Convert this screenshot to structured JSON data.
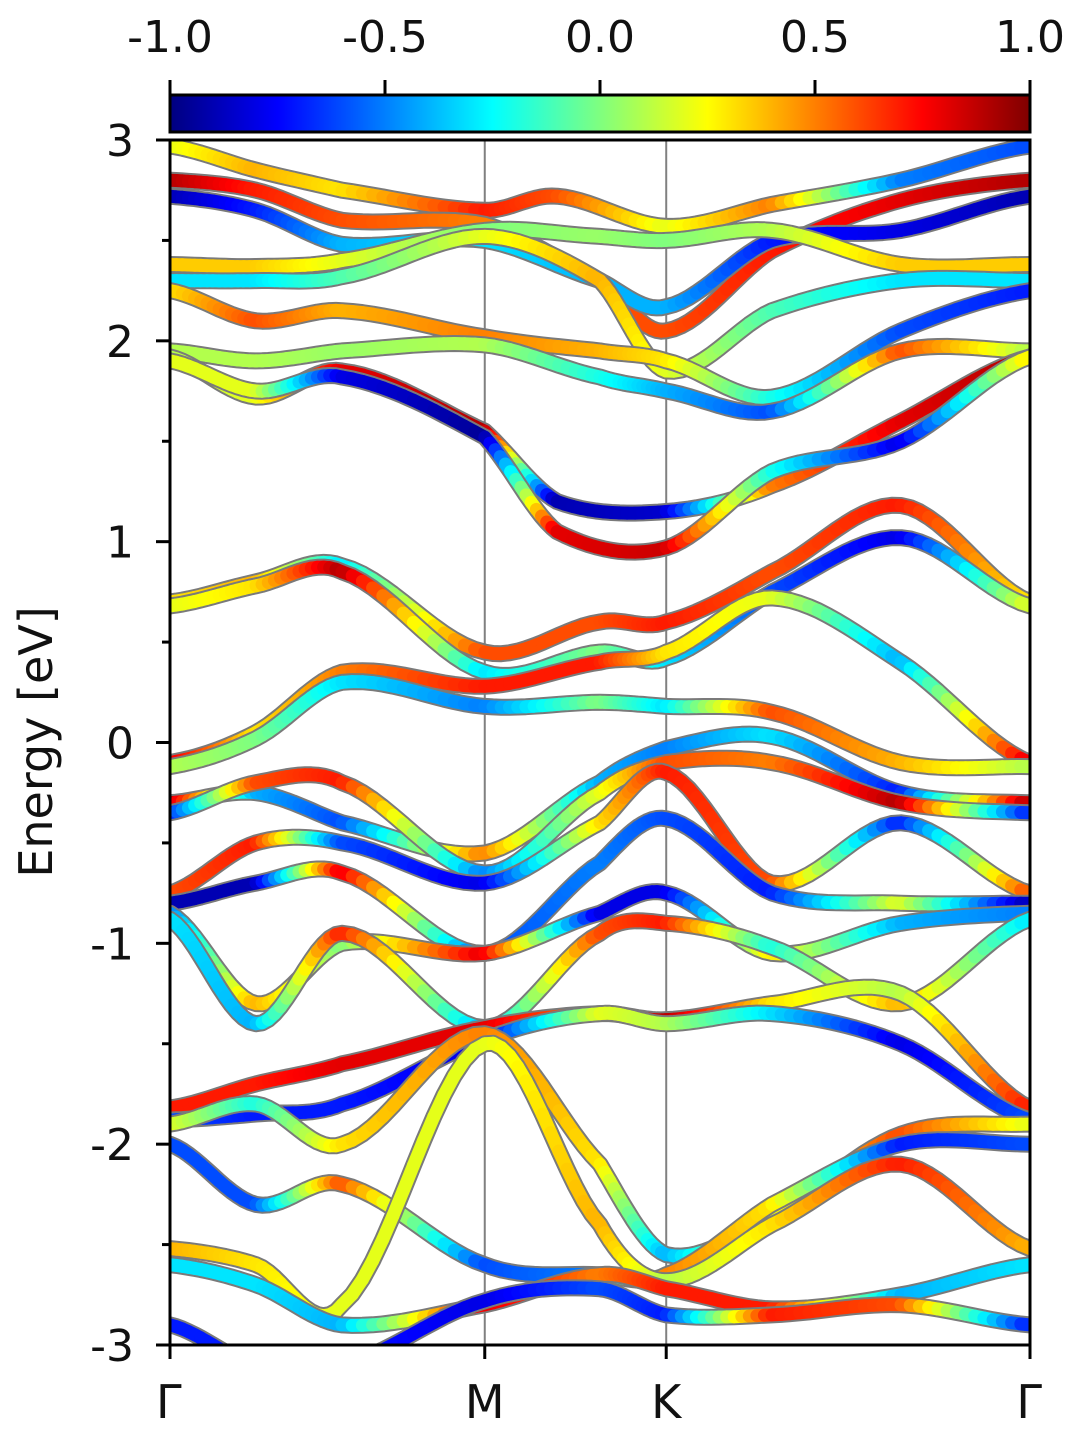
{
  "chart_data": {
    "type": "line",
    "title": "",
    "ylabel": "Energy [eV]",
    "ylim": [
      -3,
      3
    ],
    "ytick_values": [
      -3,
      -2,
      -1,
      0,
      1,
      2,
      3
    ],
    "ytick_labels": [
      "-3",
      "-2",
      "-1",
      "0",
      "1",
      "2",
      "3"
    ],
    "xtick_labels": [
      "Γ",
      "M",
      "K",
      "Γ"
    ],
    "xtick_positions": [
      0,
      0.366,
      0.577,
      1
    ],
    "high_symmetry_lines": [
      "M",
      "K"
    ],
    "colorbar": {
      "min": -1.0,
      "max": 1.0,
      "tick_values": [
        -1.0,
        -0.5,
        0.0,
        0.5,
        1.0
      ],
      "tick_labels": [
        "-1.0",
        "-0.5",
        "0.0",
        "0.5",
        "1.0"
      ],
      "colormap": "jet",
      "stops": [
        "#00007f",
        "#0000ff",
        "#007fff",
        "#00ffff",
        "#7fff7f",
        "#ffff00",
        "#ff7f00",
        "#ff0000",
        "#7f0000"
      ]
    },
    "series": [
      {
        "x": [
          0,
          0.1,
          0.2,
          0.366,
          0.45,
          0.577,
          0.7,
          0.85,
          1
        ],
        "y": [
          2.97,
          2.85,
          2.75,
          2.65,
          2.72,
          2.57,
          2.68,
          2.8,
          2.97
        ],
        "c": [
          0.2,
          0.4,
          0.3,
          0.7,
          0.6,
          0.2,
          0.5,
          -0.5,
          -0.6
        ]
      },
      {
        "x": [
          0,
          0.1,
          0.2,
          0.366,
          0.5,
          0.577,
          0.7,
          0.85,
          1
        ],
        "y": [
          2.8,
          2.75,
          2.6,
          2.58,
          2.3,
          2.05,
          2.45,
          2.7,
          2.8
        ],
        "c": [
          0.9,
          0.7,
          0.6,
          0.5,
          0.6,
          0.6,
          0.7,
          0.8,
          0.9
        ]
      },
      {
        "x": [
          0,
          0.1,
          0.2,
          0.366,
          0.5,
          0.577,
          0.7,
          0.85,
          1
        ],
        "y": [
          2.72,
          2.65,
          2.48,
          2.5,
          2.3,
          2.17,
          2.5,
          2.55,
          2.72
        ],
        "c": [
          -0.9,
          -0.7,
          -0.4,
          -0.3,
          -0.4,
          -0.4,
          -0.7,
          -0.8,
          -0.9
        ]
      },
      {
        "x": [
          0,
          0.1,
          0.2,
          0.366,
          0.5,
          0.577,
          0.7,
          0.85,
          1
        ],
        "y": [
          2.38,
          2.37,
          2.4,
          2.55,
          2.52,
          2.5,
          2.55,
          2.38,
          2.38
        ],
        "c": [
          0.35,
          0.35,
          0.2,
          0.0,
          0.05,
          0.0,
          0.1,
          0.35,
          0.35
        ]
      },
      {
        "x": [
          0,
          0.1,
          0.2,
          0.366,
          0.5,
          0.577,
          0.7,
          0.85,
          1
        ],
        "y": [
          2.3,
          2.3,
          2.32,
          2.52,
          2.3,
          1.85,
          2.15,
          2.3,
          2.3
        ],
        "c": [
          -0.3,
          -0.3,
          -0.1,
          0.2,
          0.4,
          0.2,
          -0.1,
          -0.3,
          -0.3
        ]
      },
      {
        "x": [
          0,
          0.1,
          0.2,
          0.366,
          0.5,
          0.577,
          0.7,
          0.85,
          1
        ],
        "y": [
          2.25,
          2.1,
          2.15,
          2.02,
          1.95,
          1.9,
          1.72,
          2.05,
          2.25
        ],
        "c": [
          0.3,
          0.6,
          0.4,
          0.5,
          0.4,
          0.3,
          -0.2,
          -0.6,
          -0.7
        ]
      },
      {
        "x": [
          0,
          0.1,
          0.2,
          0.366,
          0.5,
          0.577,
          0.7,
          0.85,
          1
        ],
        "y": [
          1.95,
          1.9,
          1.95,
          1.98,
          1.82,
          1.75,
          1.65,
          1.95,
          1.95
        ],
        "c": [
          0.1,
          0.1,
          0.05,
          0.1,
          -0.2,
          -0.4,
          -0.6,
          0.6,
          0.1
        ]
      },
      {
        "x": [
          0,
          0.1,
          0.2,
          0.366,
          0.45,
          0.577,
          0.7,
          0.85,
          1
        ],
        "y": [
          1.92,
          1.72,
          1.85,
          1.55,
          1.2,
          1.15,
          1.28,
          1.6,
          1.92
        ],
        "c": [
          0.1,
          0.2,
          0.8,
          0.9,
          -0.9,
          -0.85,
          0.5,
          0.8,
          0.9
        ]
      },
      {
        "x": [
          0,
          0.1,
          0.2,
          0.366,
          0.45,
          0.577,
          0.7,
          0.85,
          1
        ],
        "y": [
          1.9,
          1.75,
          1.82,
          1.52,
          1.05,
          0.97,
          1.35,
          1.5,
          1.92
        ],
        "c": [
          0.2,
          0.2,
          -0.8,
          -0.95,
          0.8,
          0.85,
          -0.2,
          -0.8,
          0.3
        ]
      },
      {
        "x": [
          0,
          0.1,
          0.2,
          0.366,
          0.5,
          0.577,
          0.7,
          0.85,
          1
        ],
        "y": [
          0.7,
          0.8,
          0.88,
          0.45,
          0.6,
          0.6,
          0.85,
          1.18,
          0.7
        ],
        "c": [
          0.3,
          0.4,
          -0.3,
          0.6,
          0.6,
          0.7,
          0.6,
          0.7,
          0.3
        ]
      },
      {
        "x": [
          0,
          0.1,
          0.2,
          0.366,
          0.5,
          0.577,
          0.7,
          0.85,
          1
        ],
        "y": [
          0.68,
          0.78,
          0.85,
          0.35,
          0.45,
          0.42,
          0.75,
          1.02,
          0.68
        ],
        "c": [
          0.2,
          0.3,
          0.9,
          -0.3,
          0.0,
          -0.3,
          -0.6,
          -0.8,
          0.2
        ]
      },
      {
        "x": [
          0,
          0.1,
          0.2,
          0.366,
          0.5,
          0.577,
          0.7,
          0.85,
          1
        ],
        "y": [
          -0.1,
          0.05,
          0.35,
          0.28,
          0.4,
          0.45,
          0.72,
          0.4,
          -0.1
        ],
        "c": [
          0.8,
          0.3,
          0.5,
          0.7,
          0.7,
          0.3,
          0.2,
          -0.4,
          0.8
        ]
      },
      {
        "x": [
          0,
          0.1,
          0.2,
          0.366,
          0.5,
          0.577,
          0.7,
          0.85,
          1
        ],
        "y": [
          -0.12,
          0.02,
          0.3,
          0.18,
          0.2,
          0.18,
          0.15,
          -0.1,
          -0.12
        ],
        "c": [
          0.1,
          0.0,
          -0.3,
          -0.5,
          0.0,
          -0.3,
          0.6,
          0.4,
          0.1
        ]
      },
      {
        "x": [
          0,
          0.1,
          0.2,
          0.366,
          0.5,
          0.577,
          0.7,
          0.85,
          1
        ],
        "y": [
          -0.3,
          -0.25,
          -0.4,
          -0.55,
          -0.2,
          -0.03,
          0.03,
          -0.25,
          -0.3
        ],
        "c": [
          0.9,
          -0.4,
          -0.6,
          0.5,
          -0.4,
          -0.5,
          -0.3,
          -0.7,
          0.9
        ]
      },
      {
        "x": [
          0,
          0.1,
          0.2,
          0.366,
          0.5,
          0.577,
          0.7,
          0.85,
          1
        ],
        "y": [
          -0.35,
          -0.2,
          -0.2,
          -0.65,
          -0.25,
          -0.1,
          -0.1,
          -0.3,
          -0.35
        ],
        "c": [
          -0.7,
          0.6,
          0.7,
          -0.5,
          0.2,
          0.6,
          0.5,
          0.9,
          -0.7
        ]
      },
      {
        "x": [
          0,
          0.1,
          0.2,
          0.366,
          0.5,
          0.577,
          0.7,
          0.85,
          1
        ],
        "y": [
          -0.75,
          -0.5,
          -0.5,
          -0.7,
          -0.4,
          -0.15,
          -0.7,
          -0.4,
          -0.75
        ],
        "c": [
          0.6,
          0.7,
          -0.6,
          -0.8,
          0.3,
          0.7,
          0.6,
          -0.7,
          0.6
        ]
      },
      {
        "x": [
          0,
          0.1,
          0.2,
          0.366,
          0.5,
          0.577,
          0.7,
          0.85,
          1
        ],
        "y": [
          -0.8,
          -0.7,
          -0.65,
          -1.05,
          -0.6,
          -0.38,
          -0.75,
          -0.8,
          -0.8
        ],
        "c": [
          -0.9,
          -0.9,
          0.8,
          -0.6,
          -0.5,
          -0.6,
          -0.7,
          0.2,
          -0.9
        ]
      },
      {
        "x": [
          0,
          0.1,
          0.2,
          0.366,
          0.5,
          0.577,
          0.7,
          0.85,
          1
        ],
        "y": [
          -0.85,
          -1.3,
          -1.0,
          -1.05,
          -0.85,
          -0.75,
          -1.05,
          -0.9,
          -0.85
        ],
        "c": [
          -0.5,
          0.4,
          0.0,
          0.8,
          -0.8,
          -0.8,
          0.3,
          -0.4,
          -0.5
        ]
      },
      {
        "x": [
          0,
          0.1,
          0.2,
          0.366,
          0.5,
          0.577,
          0.7,
          0.85,
          1
        ],
        "y": [
          -0.88,
          -1.4,
          -0.95,
          -1.42,
          -0.95,
          -0.9,
          -1.02,
          -1.3,
          -0.88
        ],
        "c": [
          -0.3,
          -0.4,
          0.7,
          -0.4,
          0.6,
          0.7,
          -0.2,
          0.4,
          -0.3
        ]
      },
      {
        "x": [
          0,
          0.1,
          0.2,
          0.366,
          0.5,
          0.577,
          0.7,
          0.85,
          1
        ],
        "y": [
          -1.82,
          -1.7,
          -1.6,
          -1.42,
          -1.35,
          -1.38,
          -1.3,
          -1.25,
          -1.82
        ],
        "c": [
          0.7,
          0.7,
          0.8,
          0.8,
          0.5,
          0.9,
          0.3,
          0.1,
          0.7
        ]
      },
      {
        "x": [
          0,
          0.1,
          0.2,
          0.366,
          0.5,
          0.577,
          0.7,
          0.85,
          1
        ],
        "y": [
          -1.88,
          -1.85,
          -1.8,
          -1.48,
          -1.35,
          -1.4,
          -1.35,
          -1.5,
          -1.88
        ],
        "c": [
          -0.6,
          -0.7,
          -0.7,
          -0.8,
          0.2,
          0.1,
          -0.3,
          -0.8,
          -0.6
        ]
      },
      {
        "x": [
          0,
          0.1,
          0.2,
          0.366,
          0.5,
          0.577,
          0.7,
          0.85,
          1
        ],
        "y": [
          -1.9,
          -1.8,
          -2.0,
          -1.45,
          -2.1,
          -2.55,
          -2.35,
          -1.95,
          -1.9
        ],
        "c": [
          0.2,
          -0.2,
          0.3,
          0.5,
          0.3,
          -0.4,
          0.2,
          0.6,
          0.2
        ]
      },
      {
        "x": [
          0,
          0.1,
          0.2,
          0.366,
          0.5,
          0.577,
          0.7,
          0.85,
          1
        ],
        "y": [
          -2.0,
          -2.3,
          -2.2,
          -2.6,
          -2.65,
          -2.65,
          -2.3,
          -2.0,
          -2.0
        ],
        "c": [
          -0.6,
          -0.6,
          0.6,
          -0.6,
          -0.5,
          0.5,
          0.3,
          -0.7,
          -0.6
        ]
      },
      {
        "x": [
          0,
          0.1,
          0.2,
          0.366,
          0.5,
          0.577,
          0.7,
          0.85,
          1
        ],
        "y": [
          -2.52,
          -2.6,
          -2.8,
          -1.5,
          -2.4,
          -2.68,
          -2.4,
          -2.1,
          -2.52
        ],
        "c": [
          0.4,
          0.3,
          0.2,
          0.2,
          0.4,
          0.1,
          0.3,
          0.7,
          0.4
        ]
      },
      {
        "x": [
          0,
          0.1,
          0.2,
          0.366,
          0.5,
          0.577,
          0.7,
          0.85,
          1
        ],
        "y": [
          -2.6,
          -2.7,
          -2.9,
          -2.8,
          -2.65,
          -2.72,
          -2.82,
          -2.75,
          -2.6
        ],
        "c": [
          -0.3,
          -0.3,
          -0.4,
          0.8,
          0.5,
          0.7,
          0.7,
          -0.4,
          -0.3
        ]
      },
      {
        "x": [
          0,
          0.1,
          0.2,
          0.366,
          0.5,
          0.577,
          0.7,
          0.85,
          1
        ],
        "y": [
          -2.9,
          -3.1,
          -3.1,
          -2.78,
          -2.72,
          -2.85,
          -2.85,
          -2.8,
          -2.9
        ],
        "c": [
          -0.7,
          -0.7,
          -0.7,
          -0.8,
          -0.6,
          -0.7,
          0.7,
          0.6,
          -0.7
        ]
      }
    ]
  }
}
